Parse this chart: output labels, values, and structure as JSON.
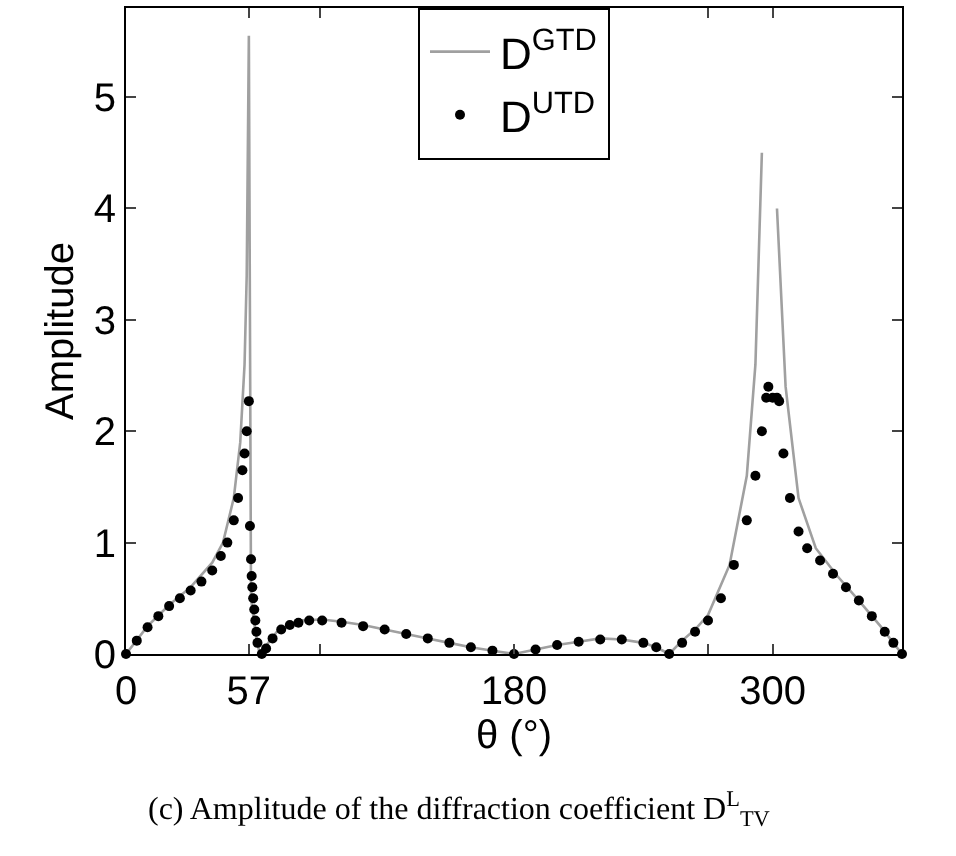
{
  "chart_data": {
    "type": "line",
    "xlabel": "θ (°)",
    "ylabel": "Amplitude",
    "annotations": [
      "(c) Amplitude of the diffraction coefficient D$^{L}$$_{TV}$"
    ],
    "xlim": [
      0,
      360
    ],
    "ylim": [
      0,
      5.8
    ],
    "xticks": [
      0,
      57,
      {
        "value": 90,
        "label": null
      },
      180,
      {
        "value": 270,
        "label": null
      },
      300
    ],
    "yticks": [
      0,
      1,
      2,
      3,
      4,
      5
    ],
    "grid": false,
    "legend": "top",
    "series": [
      {
        "name": "D$^{GTD}$",
        "color": "#a0a0a0",
        "line_style": "solid",
        "marker": "none",
        "x": [
          0,
          10,
          20,
          30,
          40,
          45,
          50,
          53,
          55,
          56,
          57,
          58,
          60,
          62,
          70,
          80,
          91,
          100,
          110,
          120,
          130,
          140,
          150,
          160,
          170,
          180,
          190,
          200,
          210,
          220,
          230,
          240,
          246,
          252,
          258,
          264,
          270,
          280,
          288,
          292,
          295,
          296,
          298,
          300,
          302,
          306,
          312,
          320,
          330,
          340,
          350,
          360
        ],
        "values": [
          0,
          0.25,
          0.44,
          0.6,
          0.82,
          1.0,
          1.4,
          1.9,
          2.6,
          3.4,
          5.55,
          0.5,
          0.2,
          0,
          0.2,
          0.3,
          0.31,
          0.29,
          0.26,
          0.22,
          0.18,
          0.14,
          0.1,
          0.06,
          0.03,
          0,
          0.04,
          0.08,
          0.11,
          0.14,
          0.13,
          0.1,
          0.06,
          0,
          0.12,
          0.22,
          0.35,
          0.8,
          1.6,
          2.6,
          4.5,
          null,
          null,
          null,
          4.0,
          2.4,
          1.4,
          0.95,
          0.7,
          0.48,
          0.25,
          0
        ]
      },
      {
        "name": "D$^{UTD}$",
        "type": "scatter",
        "color": "#000000",
        "marker": "circle",
        "x": [
          0,
          5,
          10,
          15,
          20,
          25,
          30,
          35,
          40,
          44,
          47,
          50,
          52,
          54,
          55,
          56,
          57,
          57.5,
          58,
          58.3,
          58.6,
          59,
          59.5,
          60,
          60.5,
          61,
          63,
          65,
          68,
          72,
          76,
          80,
          85,
          91,
          100,
          110,
          120,
          130,
          140,
          150,
          160,
          170,
          180,
          190,
          200,
          210,
          220,
          230,
          240,
          246,
          252,
          258,
          264,
          270,
          276,
          282,
          288,
          292,
          295,
          297,
          298,
          300,
          302,
          303,
          305,
          308,
          312,
          316,
          322,
          328,
          334,
          340,
          346,
          352,
          356,
          360
        ],
        "values": [
          0,
          0.12,
          0.24,
          0.34,
          0.43,
          0.5,
          0.57,
          0.65,
          0.75,
          0.88,
          1.0,
          1.2,
          1.4,
          1.65,
          1.8,
          2.0,
          2.27,
          1.15,
          0.85,
          0.7,
          0.6,
          0.5,
          0.4,
          0.3,
          0.2,
          0.1,
          0,
          0.05,
          0.14,
          0.22,
          0.26,
          0.28,
          0.3,
          0.3,
          0.28,
          0.25,
          0.22,
          0.18,
          0.14,
          0.1,
          0.06,
          0.03,
          0,
          0.04,
          0.08,
          0.11,
          0.13,
          0.13,
          0.1,
          0.06,
          0,
          0.1,
          0.2,
          0.3,
          0.5,
          0.8,
          1.2,
          1.6,
          2.0,
          2.3,
          2.4,
          2.3,
          2.3,
          2.27,
          1.8,
          1.4,
          1.1,
          0.95,
          0.84,
          0.72,
          0.6,
          0.48,
          0.34,
          0.2,
          0.1,
          0
        ]
      }
    ]
  }
}
